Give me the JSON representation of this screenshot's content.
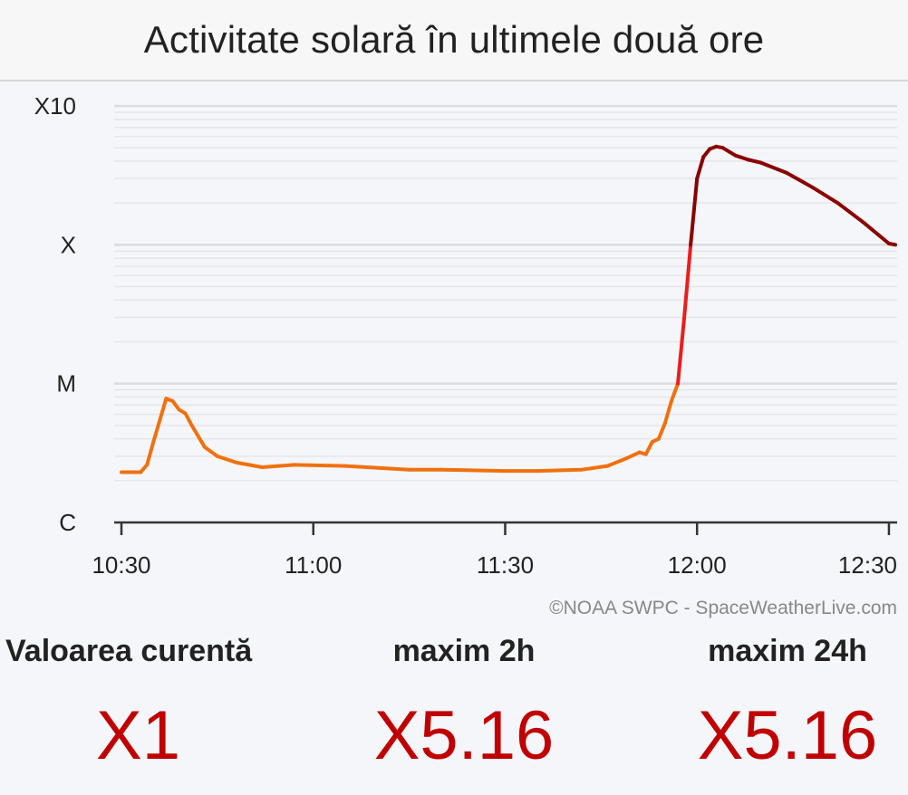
{
  "header": {
    "title": "Activitate solară în ultimele două ore"
  },
  "credit": "©NOAA SWPC - SpaceWeatherLive.com",
  "chart_data": {
    "type": "line",
    "title": "Activitate solară în ultimele două ore",
    "y_scale": "log",
    "y_unit": "W/m²",
    "ylim": [
      1e-06,
      0.001
    ],
    "y_ticks": [
      {
        "label": "X10",
        "value": 0.001
      },
      {
        "label": "X",
        "value": 0.0001
      },
      {
        "label": "M",
        "value": 1e-05
      },
      {
        "label": "C",
        "value": 1e-06
      }
    ],
    "x_ticks": [
      "10:30",
      "11:00",
      "11:30",
      "12:00",
      "12:30"
    ],
    "xlim": [
      "10:30",
      "12:31"
    ],
    "grid": true,
    "class_colors": {
      "C": "#f07010",
      "M": "#f07010",
      "X": "#ee1c1c",
      "X10": "#8b0000"
    },
    "series": [
      {
        "points": [
          [
            "10:30",
            2.3e-06
          ],
          [
            "10:33",
            2.3e-06
          ],
          [
            "10:34",
            2.6e-06
          ],
          [
            "10:35",
            3.8e-06
          ],
          [
            "10:37",
            7.8e-06
          ],
          [
            "10:38",
            7.5e-06
          ],
          [
            "10:39",
            6.5e-06
          ],
          [
            "10:40",
            6.1e-06
          ],
          [
            "10:41",
            5e-06
          ],
          [
            "10:43",
            3.5e-06
          ],
          [
            "10:45",
            3e-06
          ],
          [
            "10:48",
            2.7e-06
          ],
          [
            "10:52",
            2.5e-06
          ],
          [
            "10:57",
            2.6e-06
          ],
          [
            "11:05",
            2.55e-06
          ],
          [
            "11:15",
            2.4e-06
          ],
          [
            "11:20",
            2.4e-06
          ],
          [
            "11:30",
            2.35e-06
          ],
          [
            "11:35",
            2.35e-06
          ],
          [
            "11:42",
            2.4e-06
          ],
          [
            "11:46",
            2.55e-06
          ],
          [
            "11:49",
            2.9e-06
          ],
          [
            "11:51",
            3.2e-06
          ],
          [
            "11:52",
            3.1e-06
          ],
          [
            "11:53",
            3.8e-06
          ],
          [
            "11:54",
            4e-06
          ],
          [
            "11:55",
            5.2e-06
          ],
          [
            "11:56",
            7.5e-06
          ],
          [
            "11:57",
            1e-05
          ],
          [
            "11:58",
            3e-05
          ],
          [
            "11:59",
            0.0001
          ],
          [
            "12:00",
            0.0003
          ],
          [
            "12:01",
            0.00043
          ],
          [
            "12:02",
            0.00049
          ],
          [
            "12:03",
            0.00051
          ],
          [
            "12:04",
            0.0005
          ],
          [
            "12:06",
            0.00044
          ],
          [
            "12:08",
            0.00041
          ],
          [
            "12:10",
            0.00039
          ],
          [
            "12:14",
            0.00033
          ],
          [
            "12:18",
            0.00026
          ],
          [
            "12:22",
            0.0002
          ],
          [
            "12:26",
            0.000145
          ],
          [
            "12:30",
            0.000102
          ],
          [
            "12:31",
            0.0001
          ]
        ]
      }
    ]
  },
  "stats": {
    "current": {
      "label": "Valoarea curentă",
      "value": "X1"
    },
    "max2h": {
      "label": "maxim 2h",
      "value": "X5.16"
    },
    "max24h": {
      "label": "maxim 24h",
      "value": "X5.16"
    }
  }
}
